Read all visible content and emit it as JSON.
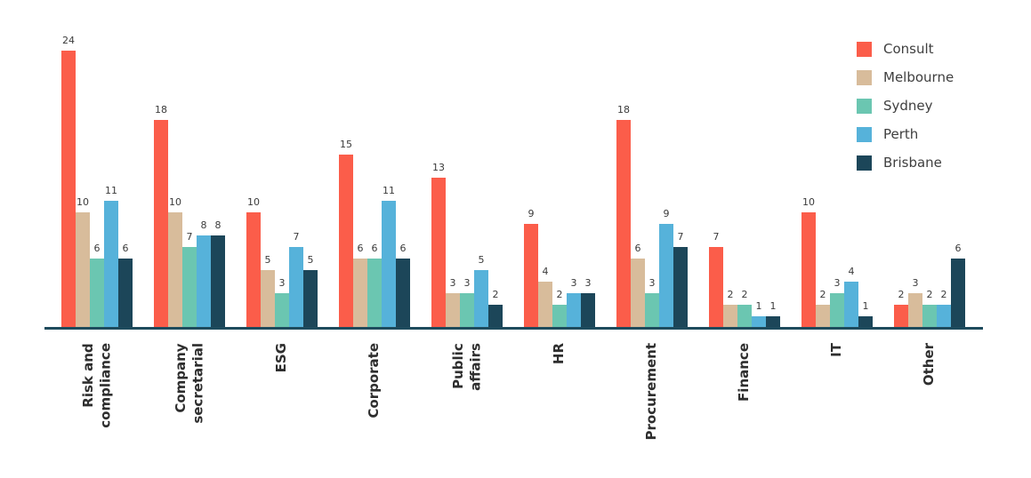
{
  "chart_data": {
    "type": "bar",
    "title": "",
    "categories": [
      "Risk and compliance",
      "Company secretarial",
      "ESG",
      "Corporate",
      "Public affairs",
      "HR",
      "Procurement",
      "Finance",
      "IT",
      "Other"
    ],
    "category_display": [
      "Risk and\ncompliance",
      "Company\nsecretarial",
      "ESG",
      "Corporate",
      "Public\naffairs",
      "HR",
      "Procurement",
      "Finance",
      "IT",
      "Other"
    ],
    "series": [
      {
        "name": "Consult",
        "color": "#fb5d4a",
        "values": [
          24,
          18,
          10,
          15,
          13,
          9,
          18,
          7,
          10,
          2
        ]
      },
      {
        "name": "Melbourne",
        "color": "#d8bc9b",
        "values": [
          10,
          10,
          5,
          6,
          3,
          4,
          6,
          2,
          2,
          3
        ]
      },
      {
        "name": "Sydney",
        "color": "#6bc6b1",
        "values": [
          6,
          7,
          3,
          6,
          3,
          2,
          3,
          2,
          3,
          2
        ]
      },
      {
        "name": "Perth",
        "color": "#56b2da",
        "values": [
          11,
          8,
          7,
          11,
          5,
          3,
          9,
          1,
          4,
          2
        ]
      },
      {
        "name": "Brisbane",
        "color": "#1c4659",
        "values": [
          6,
          8,
          5,
          6,
          2,
          3,
          7,
          1,
          1,
          6
        ]
      }
    ],
    "value_labels": true,
    "grid": false,
    "legend_position": "top-right",
    "xlabel": "",
    "ylabel": "",
    "ylim": [
      0,
      26
    ],
    "axis_color": "#1e4b5d",
    "value_label_color": "#3b3b3b",
    "category_label_color": "#2e2e2e"
  }
}
